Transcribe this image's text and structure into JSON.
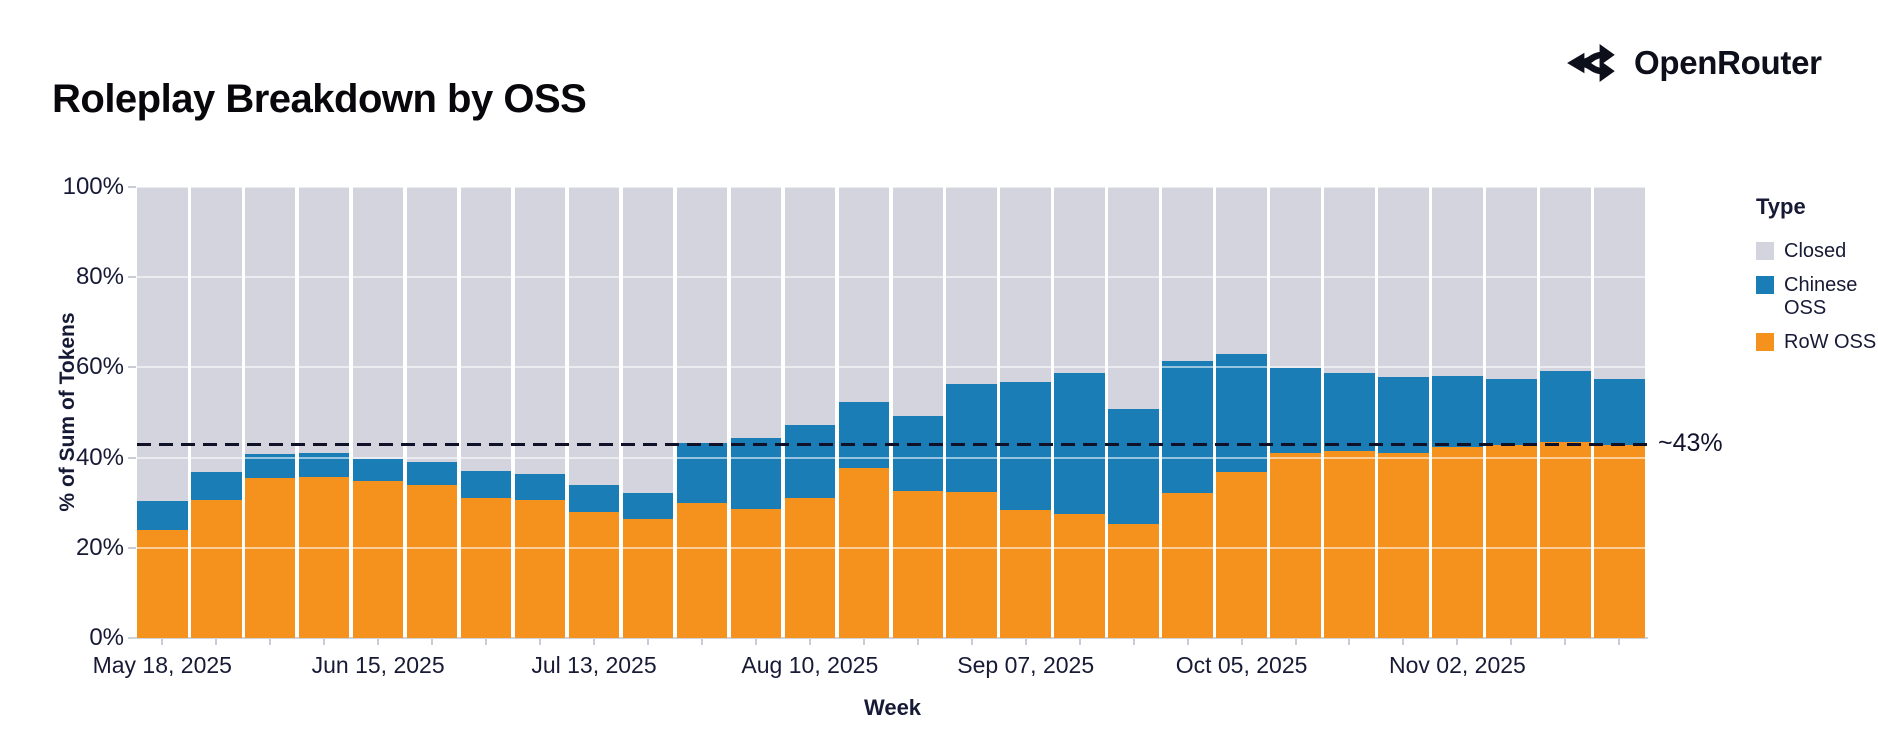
{
  "header": {
    "title": "Roleplay Breakdown by OSS",
    "brand": "OpenRouter"
  },
  "chart_data": {
    "type": "bar",
    "variant": "stacked-normalized-100pct",
    "title": "Roleplay Breakdown by OSS",
    "xlabel": "Week",
    "ylabel": "% of Sum of Tokens",
    "ylim": [
      0,
      100
    ],
    "ytick_values": [
      0,
      20,
      40,
      60,
      80,
      100
    ],
    "ytick_labels": [
      "0%",
      "20%",
      "40%",
      "60%",
      "80%",
      "100%"
    ],
    "xtick_label_every": 4,
    "visible_xtick_labels": [
      "May 18, 2025",
      "Jun 15, 2025",
      "Jul 13, 2025",
      "Aug 10, 2025",
      "Sep 07, 2025",
      "Oct 05, 2025",
      "Nov 02, 2025"
    ],
    "categories": [
      "May 18, 2025",
      "May 25, 2025",
      "Jun 01, 2025",
      "Jun 08, 2025",
      "Jun 15, 2025",
      "Jun 22, 2025",
      "Jun 29, 2025",
      "Jul 06, 2025",
      "Jul 13, 2025",
      "Jul 20, 2025",
      "Jul 27, 2025",
      "Aug 03, 2025",
      "Aug 10, 2025",
      "Aug 17, 2025",
      "Aug 24, 2025",
      "Aug 31, 2025",
      "Sep 07, 2025",
      "Sep 14, 2025",
      "Sep 21, 2025",
      "Sep 28, 2025",
      "Oct 05, 2025",
      "Oct 12, 2025",
      "Oct 19, 2025",
      "Oct 26, 2025",
      "Nov 02, 2025",
      "Nov 09, 2025",
      "Nov 16, 2025",
      "Nov 23, 2025"
    ],
    "stack_order_bottom_to_top": [
      "RoW OSS",
      "Chinese OSS",
      "Closed"
    ],
    "series": [
      {
        "name": "RoW OSS",
        "color": "#f5921d",
        "values": [
          24.0,
          30.6,
          35.5,
          35.6,
          34.8,
          34.0,
          31.1,
          30.7,
          28.0,
          26.3,
          29.9,
          28.6,
          31.1,
          37.8,
          32.6,
          32.4,
          28.4,
          27.6,
          25.2,
          32.1,
          36.7,
          41.0,
          41.5,
          41.0,
          42.4,
          42.8,
          43.5,
          42.8
        ]
      },
      {
        "name": "Chinese OSS",
        "color": "#1a7db5",
        "values": [
          6.3,
          6.1,
          5.4,
          5.5,
          5.0,
          5.1,
          6.0,
          5.7,
          6.0,
          5.8,
          13.3,
          15.7,
          16.1,
          14.6,
          16.6,
          23.9,
          28.4,
          31.2,
          25.6,
          29.3,
          26.2,
          18.8,
          17.2,
          16.9,
          15.7,
          14.6,
          15.6,
          14.6
        ]
      },
      {
        "name": "Closed",
        "color": "#d3d4de",
        "values": [
          69.7,
          63.3,
          59.1,
          58.9,
          60.2,
          60.9,
          62.9,
          63.6,
          66.0,
          67.9,
          56.8,
          55.7,
          52.8,
          47.6,
          50.8,
          43.7,
          43.2,
          41.2,
          49.2,
          38.6,
          37.1,
          40.2,
          41.3,
          42.1,
          41.9,
          42.6,
          40.9,
          42.6
        ]
      }
    ],
    "reference_line": {
      "value": 43,
      "label": "~43%",
      "style": "dashed",
      "color": "#0e1128"
    },
    "legend": {
      "title": "Type",
      "position": "right",
      "entries": [
        {
          "label": "Closed",
          "color": "#d3d4de"
        },
        {
          "label": "Chinese OSS",
          "color": "#1a7db5"
        },
        {
          "label": "RoW OSS",
          "color": "#f5921d"
        }
      ]
    },
    "grid": true
  }
}
